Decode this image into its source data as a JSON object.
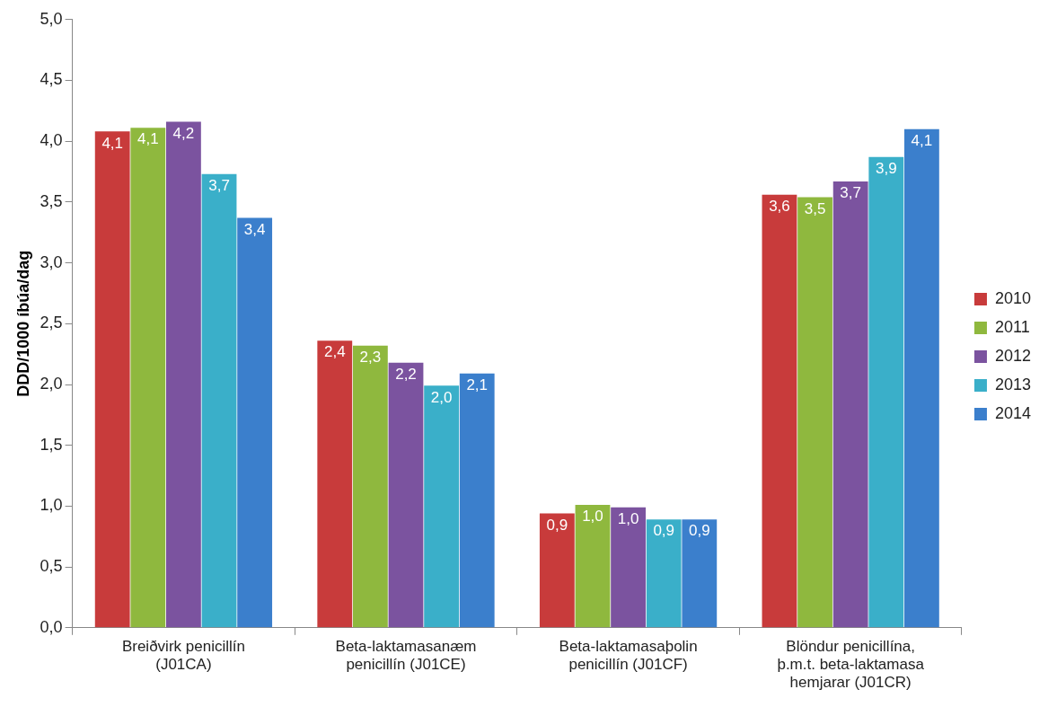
{
  "chart_data": {
    "type": "bar",
    "ylabel": "DDD/1000 íbúa/dag",
    "categories": [
      "Breiðvirk penicillín (J01CA)",
      "Beta-laktamasanæm penicillín (J01CE)",
      "Beta-laktamasaþolin penicillín (J01CF)",
      "Blöndur penicillína, þ.m.t. beta-laktamasa hemjarar (J01CR)"
    ],
    "series": [
      {
        "name": "2010",
        "color": "#c83b3b",
        "values": [
          4.08,
          2.36,
          0.94,
          3.56
        ],
        "value_labels": [
          "4,1",
          "2,4",
          "0,9",
          "3,6"
        ]
      },
      {
        "name": "2011",
        "color": "#8fb83e",
        "values": [
          4.11,
          2.32,
          1.01,
          3.54
        ],
        "value_labels": [
          "4,1",
          "2,3",
          "1,0",
          "3,5"
        ]
      },
      {
        "name": "2012",
        "color": "#7b539f",
        "values": [
          4.16,
          2.18,
          0.99,
          3.67
        ],
        "value_labels": [
          "4,2",
          "2,2",
          "1,0",
          "3,7"
        ]
      },
      {
        "name": "2013",
        "color": "#3aafc9",
        "values": [
          3.73,
          1.99,
          0.89,
          3.87
        ],
        "value_labels": [
          "3,7",
          "2,0",
          "0,9",
          "3,9"
        ]
      },
      {
        "name": "2014",
        "color": "#3b7fcc",
        "values": [
          3.37,
          2.09,
          0.89,
          4.1
        ],
        "value_labels": [
          "3,4",
          "2,1",
          "0,9",
          "4,1"
        ]
      }
    ],
    "ylim": [
      0,
      5
    ],
    "yticks": [
      {
        "value": 0,
        "label": "0,0"
      },
      {
        "value": 0.5,
        "label": "0,5"
      },
      {
        "value": 1,
        "label": "1,0"
      },
      {
        "value": 1.5,
        "label": "1,5"
      },
      {
        "value": 2,
        "label": "2,0"
      },
      {
        "value": 2.5,
        "label": "2,5"
      },
      {
        "value": 3,
        "label": "3,0"
      },
      {
        "value": 3.5,
        "label": "3,5"
      },
      {
        "value": 4,
        "label": "4,0"
      },
      {
        "value": 4.5,
        "label": "4,5"
      },
      {
        "value": 5,
        "label": "5,0"
      }
    ],
    "grid": false,
    "legend": "right"
  }
}
